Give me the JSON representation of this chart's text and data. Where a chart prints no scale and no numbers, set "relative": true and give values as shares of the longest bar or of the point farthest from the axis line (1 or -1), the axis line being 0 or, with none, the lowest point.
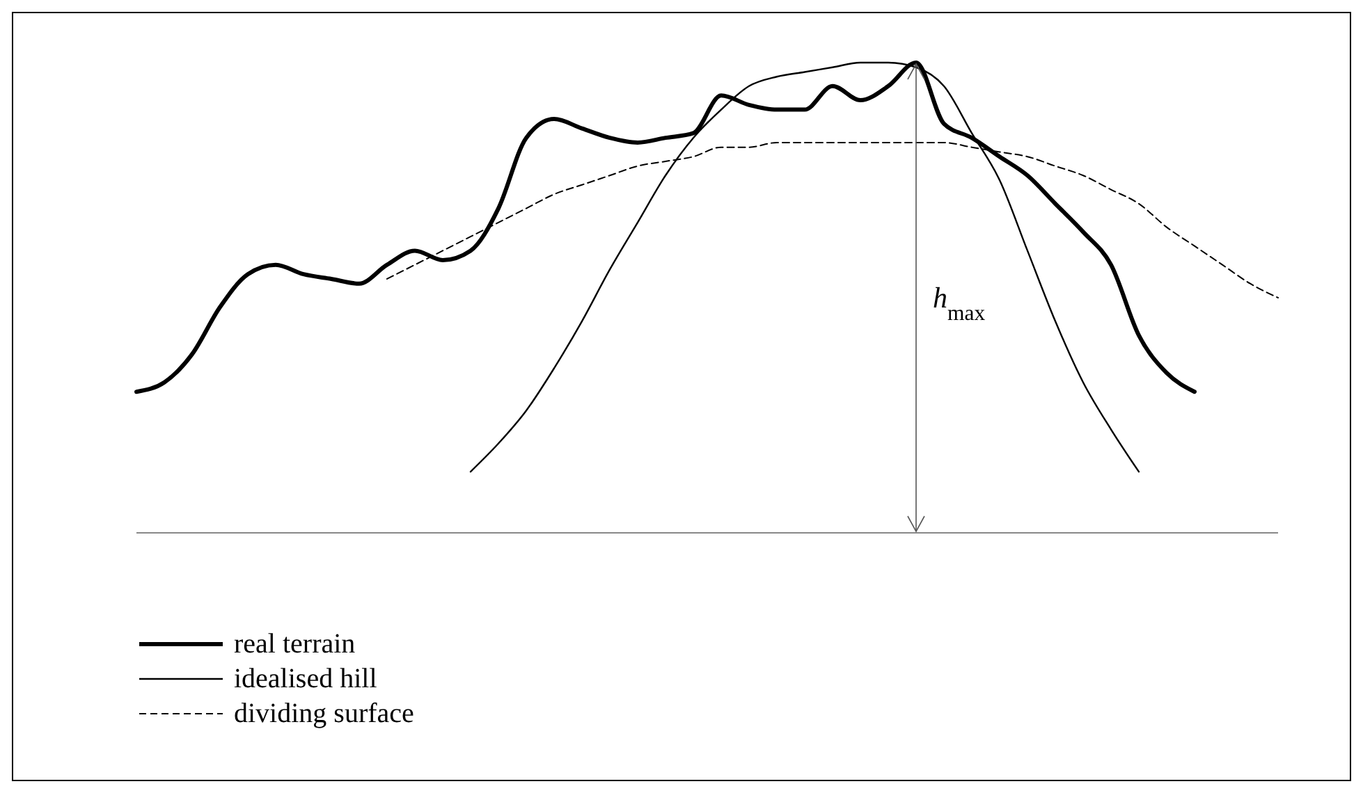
{
  "chart_data": {
    "type": "line",
    "relative": true,
    "legend": "bottom left",
    "marker": "none",
    "categories": [
      null,
      null,
      null,
      null,
      null,
      null,
      null,
      null,
      null,
      null,
      null,
      null,
      null,
      null,
      null,
      null,
      null,
      null,
      null,
      null,
      null,
      null,
      null,
      null,
      null,
      null,
      null,
      null,
      null,
      null,
      null,
      null,
      null,
      null,
      null,
      null,
      null,
      null,
      null,
      null,
      null,
      null
    ],
    "series": [
      {
        "name": "real terrain",
        "color": "#000000",
        "line_style": "solid",
        "values": [
          0.3,
          0.32,
          0.38,
          0.48,
          0.55,
          0.57,
          0.55,
          0.54,
          0.53,
          0.57,
          0.6,
          0.58,
          0.6,
          0.69,
          0.84,
          0.88,
          0.86,
          0.84,
          0.83,
          0.84,
          0.85,
          0.93,
          0.91,
          0.9,
          0.9,
          0.95,
          0.92,
          0.95,
          1.0,
          0.87,
          0.84,
          0.8,
          0.76,
          0.7,
          0.64,
          0.57,
          0.42,
          0.34,
          0.3,
          null,
          null,
          null
        ]
      },
      {
        "name": "idealised hill",
        "color": "#000000",
        "line_style": "solid",
        "values": [
          null,
          null,
          null,
          null,
          null,
          null,
          null,
          null,
          null,
          null,
          null,
          null,
          0.13,
          0.19,
          0.26,
          0.35,
          0.45,
          0.56,
          0.66,
          0.76,
          0.84,
          0.9,
          0.95,
          0.97,
          0.98,
          0.99,
          1.0,
          1.0,
          0.99,
          0.95,
          0.85,
          0.75,
          0.6,
          0.45,
          0.32,
          0.22,
          0.13,
          null,
          null,
          null,
          null,
          null
        ]
      },
      {
        "name": "dividing surface",
        "color": "#000000",
        "line_style": "dashed",
        "values": [
          null,
          null,
          null,
          null,
          null,
          null,
          null,
          null,
          null,
          0.54,
          0.57,
          0.6,
          0.63,
          0.66,
          0.69,
          0.72,
          0.74,
          0.76,
          0.78,
          0.79,
          0.8,
          0.82,
          0.82,
          0.83,
          0.83,
          0.83,
          0.83,
          0.83,
          0.83,
          0.83,
          0.82,
          0.81,
          0.8,
          0.78,
          0.76,
          0.73,
          0.7,
          0.65,
          0.61,
          0.57,
          0.53,
          0.5
        ]
      }
    ],
    "annotations": [
      "h$_{max}$"
    ]
  }
}
